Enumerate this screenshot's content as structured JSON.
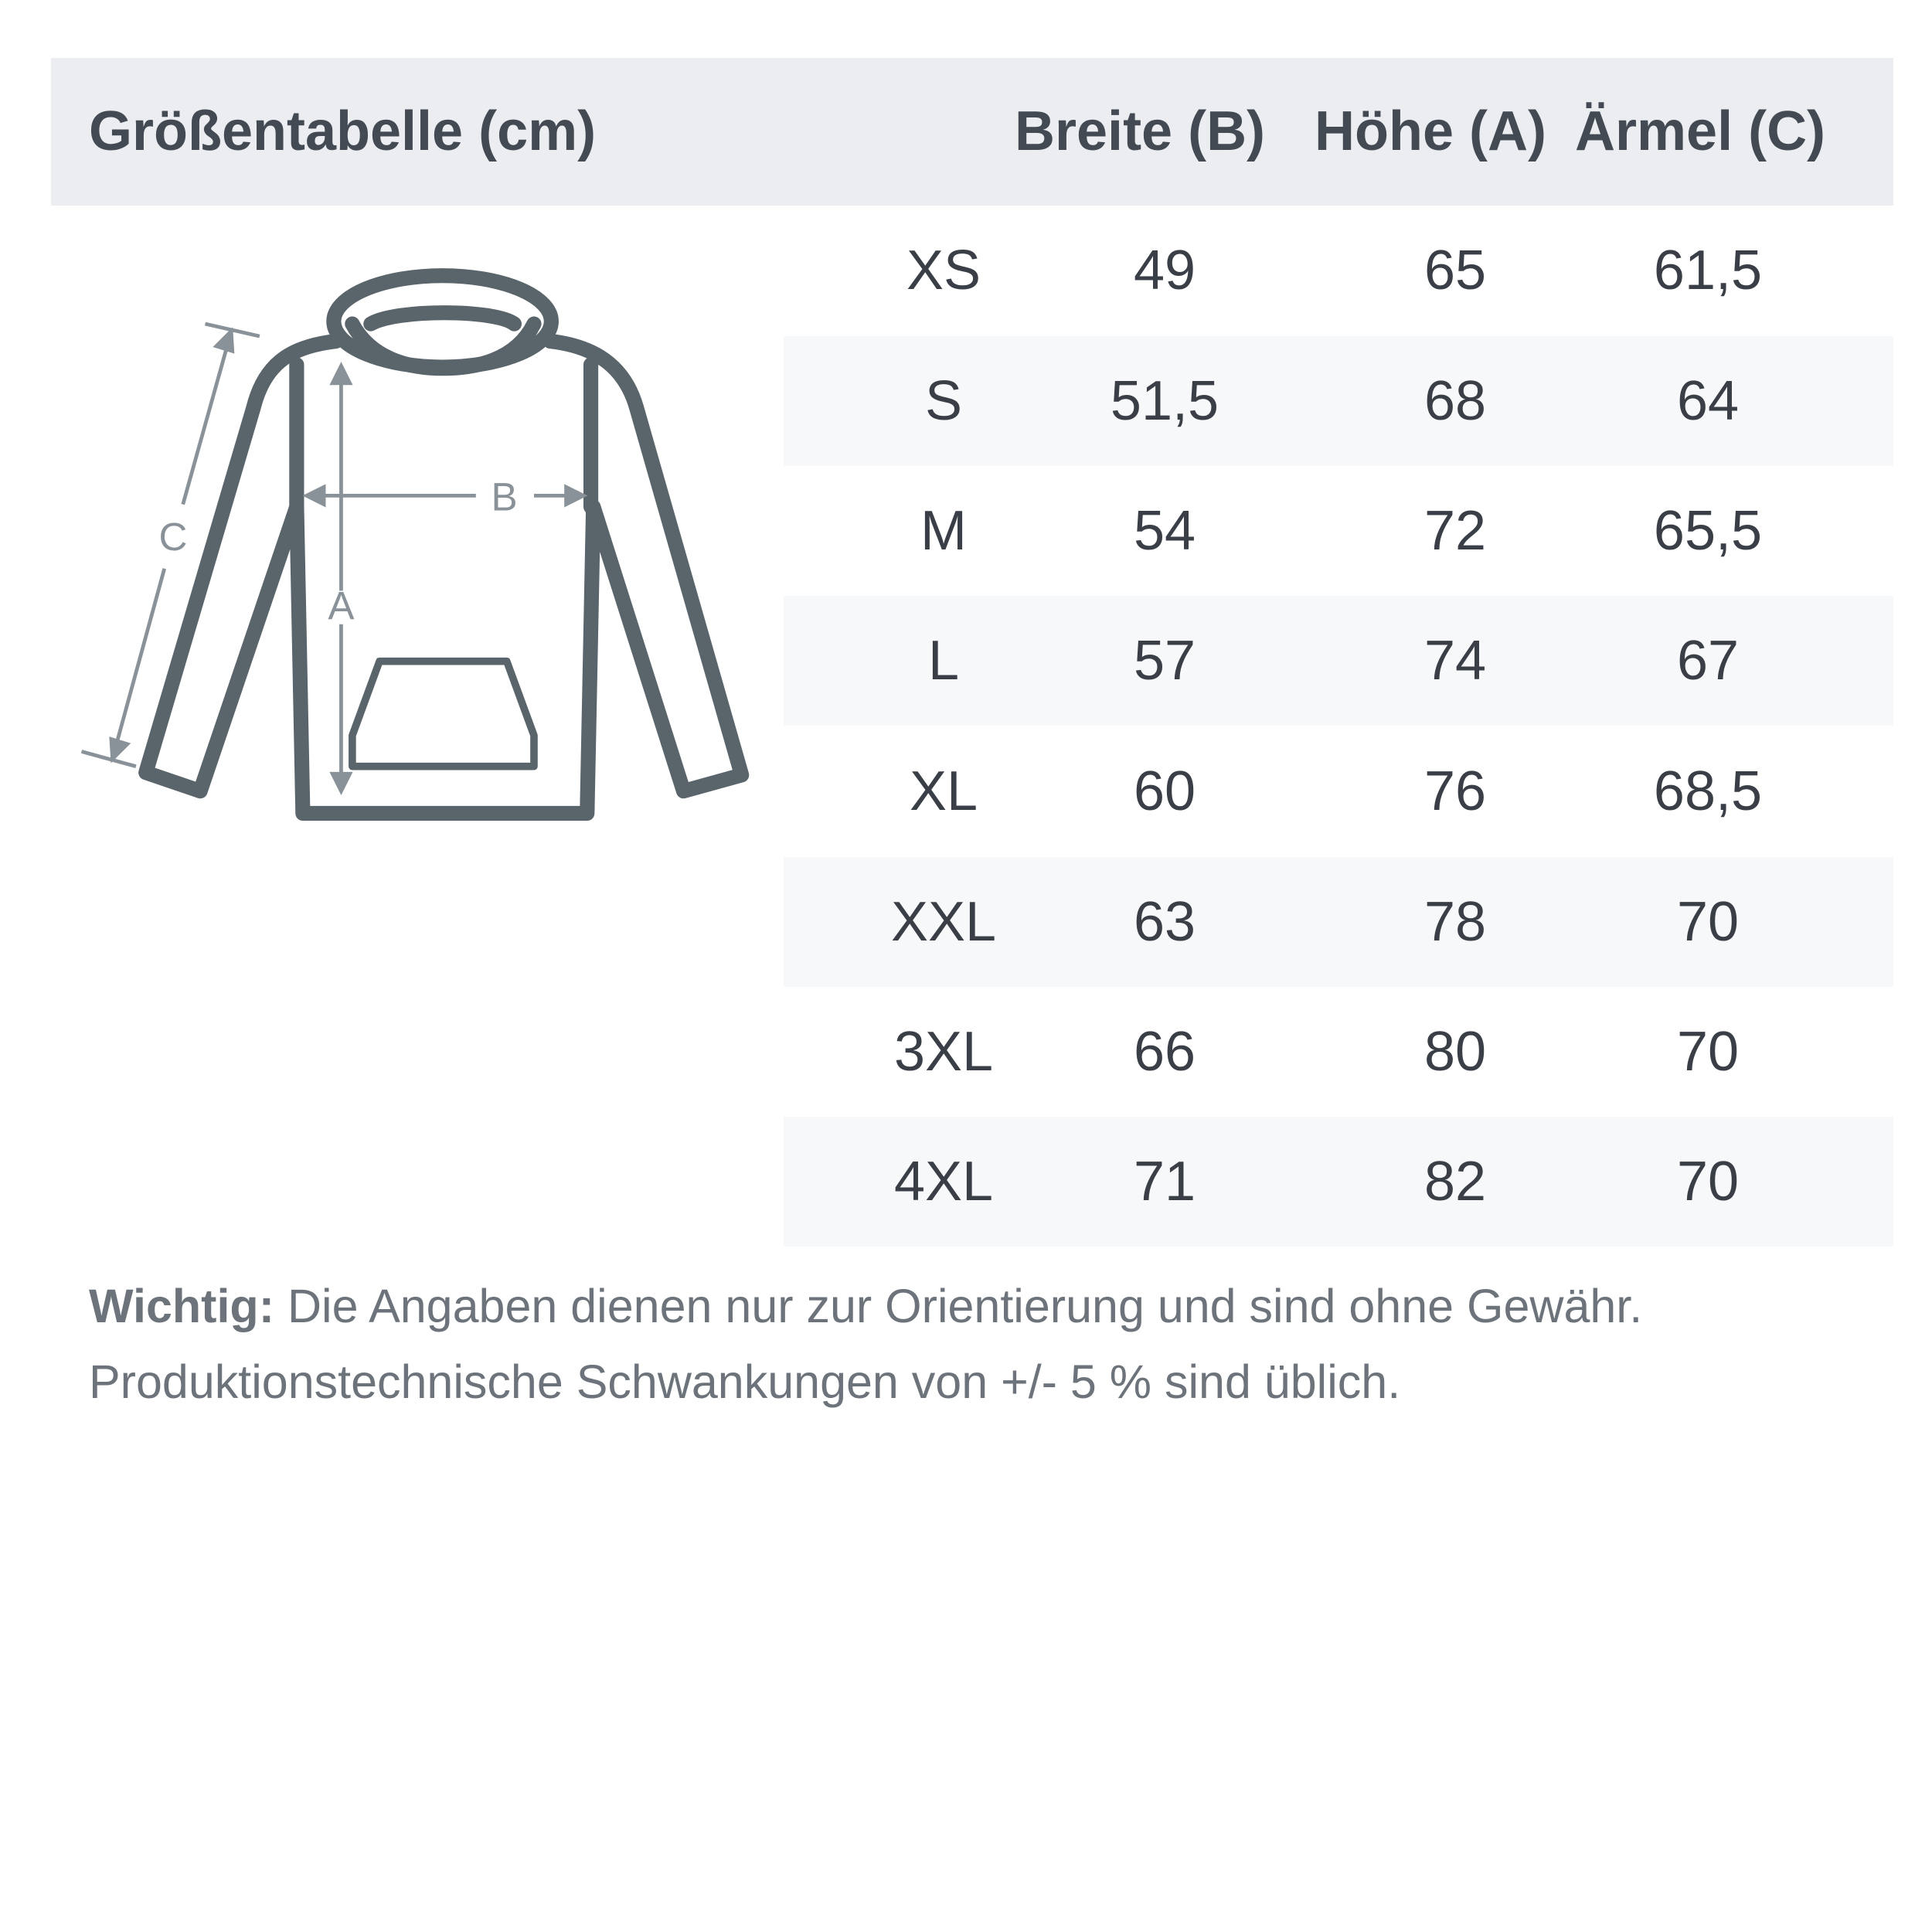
{
  "header": {
    "title": "Größentabelle (cm)",
    "columns": [
      "Breite (B)",
      "Höhe (A)",
      "Ärmel (C)"
    ]
  },
  "diagram": {
    "labels": {
      "a": "A",
      "b": "B",
      "c": "C"
    },
    "colors": {
      "outline": "#5a646b",
      "measure": "#8a9299"
    }
  },
  "rows": [
    {
      "size": "XS",
      "breite": "49",
      "hoehe": "65",
      "aermel": "61,5"
    },
    {
      "size": "S",
      "breite": "51,5",
      "hoehe": "68",
      "aermel": "64"
    },
    {
      "size": "M",
      "breite": "54",
      "hoehe": "72",
      "aermel": "65,5"
    },
    {
      "size": "L",
      "breite": "57",
      "hoehe": "74",
      "aermel": "67"
    },
    {
      "size": "XL",
      "breite": "60",
      "hoehe": "76",
      "aermel": "68,5"
    },
    {
      "size": "XXL",
      "breite": "63",
      "hoehe": "78",
      "aermel": "70"
    },
    {
      "size": "3XL",
      "breite": "66",
      "hoehe": "80",
      "aermel": "70"
    },
    {
      "size": "4XL",
      "breite": "71",
      "hoehe": "82",
      "aermel": "70"
    }
  ],
  "note": {
    "label": "Wichtig:",
    "line1": " Die Angaben dienen nur zur Orientierung und sind ohne Gewähr.",
    "line2": "Produktionstechnische Schwankungen von +/- 5 % sind üblich."
  }
}
